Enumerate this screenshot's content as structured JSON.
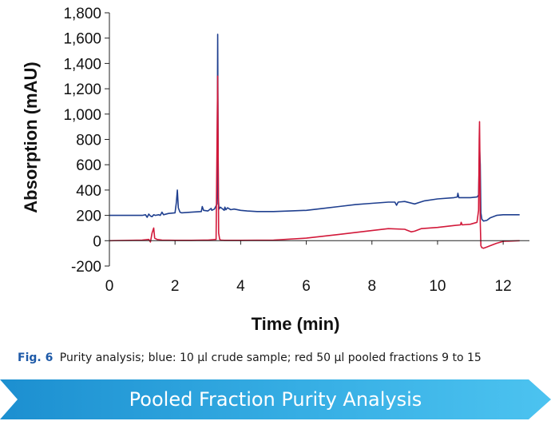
{
  "chart_data": {
    "type": "line",
    "xlabel": "Time (min)",
    "ylabel": "Absorption (mAU)",
    "xlim": [
      0,
      12.8
    ],
    "ylim": [
      -200,
      1800
    ],
    "x_ticks": [
      0,
      2,
      4,
      6,
      8,
      10,
      12
    ],
    "y_ticks": [
      -200,
      0,
      200,
      400,
      600,
      800,
      1000,
      1200,
      1400,
      1600,
      1800
    ],
    "y_tick_labels": [
      "-200",
      "0",
      "200",
      "400",
      "600",
      "800",
      "1,000",
      "1,200",
      "1,400",
      "1,600",
      "1,800"
    ],
    "grid": false,
    "series": [
      {
        "color": "#1f3f8f",
        "x": [
          0,
          1.0,
          1.1,
          1.15,
          1.2,
          1.25,
          1.3,
          1.35,
          1.4,
          1.5,
          1.55,
          1.6,
          1.65,
          1.8,
          2.0,
          2.04,
          2.07,
          2.1,
          2.15,
          2.2,
          2.5,
          2.8,
          2.83,
          2.87,
          3.0,
          3.1,
          3.12,
          3.2,
          3.28,
          3.3,
          3.32,
          3.34,
          3.38,
          3.5,
          3.52,
          3.55,
          3.6,
          3.7,
          3.8,
          4.0,
          4.2,
          4.5,
          5.0,
          5.5,
          6.0,
          6.5,
          7.0,
          7.5,
          8.0,
          8.5,
          8.7,
          8.75,
          8.8,
          9.0,
          9.3,
          9.6,
          10.0,
          10.5,
          10.6,
          10.62,
          10.65,
          11.0,
          11.2,
          11.25,
          11.28,
          11.3,
          11.32,
          11.35,
          11.4,
          11.5,
          11.6,
          11.8,
          12.0,
          12.5
        ],
        "y": [
          200,
          200,
          205,
          185,
          210,
          195,
          190,
          205,
          200,
          205,
          200,
          225,
          205,
          215,
          220,
          300,
          400,
          260,
          225,
          220,
          225,
          230,
          270,
          240,
          235,
          255,
          240,
          250,
          290,
          1630,
          340,
          250,
          265,
          240,
          265,
          245,
          260,
          245,
          250,
          240,
          235,
          230,
          230,
          235,
          240,
          255,
          270,
          285,
          295,
          305,
          305,
          280,
          305,
          310,
          290,
          315,
          330,
          340,
          345,
          375,
          340,
          340,
          345,
          360,
          740,
          600,
          220,
          170,
          155,
          160,
          180,
          200,
          205,
          205
        ]
      },
      {
        "color": "#d2193a",
        "x": [
          0,
          1.0,
          1.2,
          1.25,
          1.3,
          1.35,
          1.38,
          1.45,
          1.6,
          2.0,
          2.5,
          3.0,
          3.25,
          3.3,
          3.33,
          3.36,
          3.4,
          3.5,
          4.0,
          5.0,
          6.0,
          7.0,
          8.0,
          8.5,
          9.0,
          9.2,
          9.3,
          9.5,
          10.0,
          10.5,
          10.7,
          10.72,
          10.75,
          11.0,
          11.2,
          11.25,
          11.27,
          11.28,
          11.29,
          11.3,
          11.32,
          11.35,
          11.4,
          11.5,
          11.6,
          11.8,
          12.0,
          12.5
        ],
        "y": [
          0,
          5,
          10,
          -10,
          60,
          100,
          20,
          10,
          5,
          3,
          3,
          5,
          10,
          1300,
          60,
          10,
          5,
          3,
          3,
          5,
          20,
          50,
          80,
          95,
          90,
          70,
          75,
          95,
          105,
          120,
          125,
          145,
          125,
          130,
          145,
          240,
          800,
          940,
          700,
          150,
          -40,
          -55,
          -60,
          -50,
          -40,
          -20,
          -5,
          0
        ]
      }
    ]
  },
  "caption": {
    "label": "Fig. 6",
    "text": "Purity analysis; blue: 10 µl crude sample;  red 50 µl pooled fractions 9 to 15"
  },
  "banner": {
    "title": "Pooled Fraction Purity Analysis"
  }
}
